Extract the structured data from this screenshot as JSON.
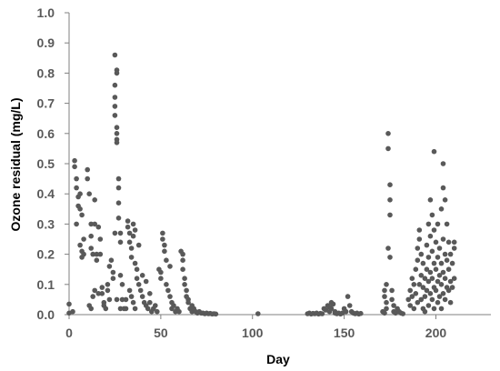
{
  "chart_data": {
    "type": "scatter",
    "xlabel": "Day",
    "ylabel": "Ozone residual (mg/L)",
    "xlim": [
      0,
      230
    ],
    "ylim": [
      0,
      1.0
    ],
    "xticks": [
      "0",
      "50",
      "100",
      "150",
      "200"
    ],
    "yticks": [
      "0.0",
      "0.1",
      "0.2",
      "0.3",
      "0.4",
      "0.5",
      "0.6",
      "0.7",
      "0.8",
      "0.9",
      "1.0"
    ],
    "grid": false,
    "legend": "none",
    "colors": {
      "point": "#595959",
      "axis": "#808080"
    },
    "series": [
      {
        "points": [
          [
            0,
            0.035
          ],
          [
            0,
            0.005
          ],
          [
            2,
            0.01
          ],
          [
            3,
            0.51
          ],
          [
            3,
            0.49
          ],
          [
            4,
            0.45
          ],
          [
            4,
            0.42
          ],
          [
            5,
            0.39
          ],
          [
            5,
            0.36
          ],
          [
            4,
            0.3
          ],
          [
            6,
            0.4
          ],
          [
            6,
            0.35
          ],
          [
            7,
            0.33
          ],
          [
            6,
            0.23
          ],
          [
            7,
            0.21
          ],
          [
            7,
            0.19
          ],
          [
            8,
            0.25
          ],
          [
            8,
            0.2
          ],
          [
            10,
            0.48
          ],
          [
            10,
            0.45
          ],
          [
            11,
            0.4
          ],
          [
            12,
            0.3
          ],
          [
            12,
            0.26
          ],
          [
            12,
            0.22
          ],
          [
            13,
            0.2
          ],
          [
            14,
            0.38
          ],
          [
            14,
            0.3
          ],
          [
            15,
            0.2
          ],
          [
            15,
            0.18
          ],
          [
            16,
            0.29
          ],
          [
            17,
            0.25
          ],
          [
            17,
            0.2
          ],
          [
            16,
            0.07
          ],
          [
            14,
            0.08
          ],
          [
            13,
            0.06
          ],
          [
            12,
            0.02
          ],
          [
            11,
            0.03
          ],
          [
            18,
            0.09
          ],
          [
            18,
            0.07
          ],
          [
            19,
            0.04
          ],
          [
            19,
            0.03
          ],
          [
            20,
            0.02
          ],
          [
            21,
            0.08
          ],
          [
            21,
            0.1
          ],
          [
            22,
            0.05
          ],
          [
            22,
            0.16
          ],
          [
            23,
            0.18
          ],
          [
            24,
            0.12
          ],
          [
            24,
            0.14
          ],
          [
            25,
            0.27
          ],
          [
            25,
            0.86
          ],
          [
            26,
            0.81
          ],
          [
            26,
            0.8
          ],
          [
            25,
            0.76
          ],
          [
            25,
            0.72
          ],
          [
            25,
            0.69
          ],
          [
            25,
            0.66
          ],
          [
            26,
            0.62
          ],
          [
            26,
            0.6
          ],
          [
            26,
            0.58
          ],
          [
            26,
            0.57
          ],
          [
            27,
            0.45
          ],
          [
            27,
            0.42
          ],
          [
            27,
            0.37
          ],
          [
            27,
            0.32
          ],
          [
            28,
            0.27
          ],
          [
            28,
            0.24
          ],
          [
            28,
            0.13
          ],
          [
            29,
            0.1
          ],
          [
            29,
            0.05
          ],
          [
            30,
            0.02
          ],
          [
            28,
            0.02
          ],
          [
            26,
            0.05
          ],
          [
            32,
            0.31
          ],
          [
            32,
            0.29
          ],
          [
            33,
            0.27
          ],
          [
            33,
            0.24
          ],
          [
            34,
            0.22
          ],
          [
            34,
            0.19
          ],
          [
            35,
            0.26
          ],
          [
            35,
            0.3
          ],
          [
            36,
            0.28
          ],
          [
            36,
            0.17
          ],
          [
            37,
            0.15
          ],
          [
            37,
            0.12
          ],
          [
            38,
            0.23
          ],
          [
            38,
            0.1
          ],
          [
            39,
            0.08
          ],
          [
            40,
            0.06
          ],
          [
            40,
            0.13
          ],
          [
            41,
            0.04
          ],
          [
            42,
            0.11
          ],
          [
            42,
            0.03
          ],
          [
            43,
            0.02
          ],
          [
            44,
            0.07
          ],
          [
            45,
            0.01
          ],
          [
            44,
            0.04
          ],
          [
            46,
            0.02
          ],
          [
            47,
            0.03
          ],
          [
            48,
            0.01
          ],
          [
            33,
            0.08
          ],
          [
            34,
            0.06
          ],
          [
            35,
            0.04
          ],
          [
            36,
            0.02
          ],
          [
            31,
            0.05
          ],
          [
            31,
            0.02
          ],
          [
            49,
            0.15
          ],
          [
            50,
            0.14
          ],
          [
            50,
            0.12
          ],
          [
            51,
            0.27
          ],
          [
            51,
            0.25
          ],
          [
            52,
            0.23
          ],
          [
            52,
            0.21
          ],
          [
            53,
            0.18
          ],
          [
            53,
            0.1
          ],
          [
            54,
            0.08
          ],
          [
            55,
            0.06
          ],
          [
            55,
            0.16
          ],
          [
            56,
            0.04
          ],
          [
            56,
            0.02
          ],
          [
            57,
            0.03
          ],
          [
            58,
            0.01
          ],
          [
            59,
            0.02
          ],
          [
            60,
            0.01
          ],
          [
            61,
            0.21
          ],
          [
            62,
            0.2
          ],
          [
            62,
            0.18
          ],
          [
            62,
            0.15
          ],
          [
            63,
            0.12
          ],
          [
            63,
            0.1
          ],
          [
            64,
            0.08
          ],
          [
            64,
            0.06
          ],
          [
            65,
            0.05
          ],
          [
            65,
            0.04
          ],
          [
            66,
            0.02
          ],
          [
            67,
            0.03
          ],
          [
            67,
            0.01
          ],
          [
            68,
            0.02
          ],
          [
            69,
            0.01
          ],
          [
            70,
            0.005
          ],
          [
            71,
            0.01
          ],
          [
            72,
            0.005
          ],
          [
            73,
            0.005
          ],
          [
            74,
            0.003
          ],
          [
            75,
            0.005
          ],
          [
            76,
            0.003
          ],
          [
            77,
            0.004
          ],
          [
            78,
            0.002
          ],
          [
            79,
            0.003
          ],
          [
            80,
            0.002
          ],
          [
            103,
            0.003
          ],
          [
            130,
            0.003
          ],
          [
            131,
            0.005
          ],
          [
            132,
            0.002
          ],
          [
            133,
            0.004
          ],
          [
            134,
            0.003
          ],
          [
            135,
            0.005
          ],
          [
            136,
            0.002
          ],
          [
            137,
            0.004
          ],
          [
            138,
            0.003
          ],
          [
            139,
            0.02
          ],
          [
            140,
            0.015
          ],
          [
            141,
            0.03
          ],
          [
            142,
            0.025
          ],
          [
            142,
            0.01
          ],
          [
            143,
            0.04
          ],
          [
            143,
            0.02
          ],
          [
            144,
            0.035
          ],
          [
            145,
            0.01
          ],
          [
            145,
            0.005
          ],
          [
            146,
            0.003
          ],
          [
            147,
            0.005
          ],
          [
            148,
            0.002
          ],
          [
            149,
            0.005
          ],
          [
            150,
            0.02
          ],
          [
            151,
            0.01
          ],
          [
            152,
            0.06
          ],
          [
            153,
            0.03
          ],
          [
            154,
            0.01
          ],
          [
            155,
            0.005
          ],
          [
            156,
            0.003
          ],
          [
            157,
            0.005
          ],
          [
            158,
            0.002
          ],
          [
            159,
            0.004
          ],
          [
            172,
            0.08
          ],
          [
            172,
            0.06
          ],
          [
            173,
            0.1
          ],
          [
            173,
            0.04
          ],
          [
            173,
            0.02
          ],
          [
            174,
            0.6
          ],
          [
            174,
            0.55
          ],
          [
            175,
            0.43
          ],
          [
            175,
            0.38
          ],
          [
            175,
            0.33
          ],
          [
            174,
            0.22
          ],
          [
            175,
            0.19
          ],
          [
            176,
            0.08
          ],
          [
            176,
            0.05
          ],
          [
            177,
            0.03
          ],
          [
            177,
            0.01
          ],
          [
            178,
            0.005
          ],
          [
            179,
            0.02
          ],
          [
            180,
            0.01
          ],
          [
            181,
            0.005
          ],
          [
            182,
            0.003
          ],
          [
            172,
            0.005
          ],
          [
            171,
            0.01
          ],
          [
            185,
            0.05
          ],
          [
            186,
            0.08
          ],
          [
            186,
            0.03
          ],
          [
            187,
            0.12
          ],
          [
            187,
            0.06
          ],
          [
            188,
            0.1
          ],
          [
            188,
            0.02
          ],
          [
            189,
            0.15
          ],
          [
            189,
            0.07
          ],
          [
            190,
            0.22
          ],
          [
            190,
            0.18
          ],
          [
            190,
            0.04
          ],
          [
            191,
            0.28
          ],
          [
            191,
            0.25
          ],
          [
            191,
            0.1
          ],
          [
            192,
            0.2
          ],
          [
            192,
            0.13
          ],
          [
            192,
            0.05
          ],
          [
            193,
            0.17
          ],
          [
            193,
            0.09
          ],
          [
            193,
            0.02
          ],
          [
            194,
            0.12
          ],
          [
            194,
            0.06
          ],
          [
            194,
            0.01
          ],
          [
            195,
            0.23
          ],
          [
            195,
            0.15
          ],
          [
            195,
            0.08
          ],
          [
            196,
            0.3
          ],
          [
            196,
            0.19
          ],
          [
            196,
            0.11
          ],
          [
            196,
            0.03
          ],
          [
            197,
            0.38
          ],
          [
            197,
            0.26
          ],
          [
            197,
            0.14
          ],
          [
            197,
            0.07
          ],
          [
            198,
            0.33
          ],
          [
            198,
            0.21
          ],
          [
            198,
            0.12
          ],
          [
            198,
            0.05
          ],
          [
            199,
            0.54
          ],
          [
            199,
            0.28
          ],
          [
            199,
            0.17
          ],
          [
            199,
            0.09
          ],
          [
            199,
            0.02
          ],
          [
            200,
            0.24
          ],
          [
            200,
            0.15
          ],
          [
            200,
            0.08
          ],
          [
            201,
            0.3
          ],
          [
            201,
            0.19
          ],
          [
            201,
            0.11
          ],
          [
            201,
            0.04
          ],
          [
            202,
            0.22
          ],
          [
            202,
            0.13
          ],
          [
            202,
            0.06
          ],
          [
            203,
            0.35
          ],
          [
            203,
            0.17
          ],
          [
            203,
            0.1
          ],
          [
            203,
            0.02
          ],
          [
            204,
            0.5
          ],
          [
            204,
            0.42
          ],
          [
            204,
            0.25
          ],
          [
            204,
            0.14
          ],
          [
            204,
            0.07
          ],
          [
            205,
            0.38
          ],
          [
            205,
            0.2
          ],
          [
            205,
            0.12
          ],
          [
            205,
            0.05
          ],
          [
            206,
            0.3
          ],
          [
            206,
            0.18
          ],
          [
            206,
            0.09
          ],
          [
            207,
            0.24
          ],
          [
            207,
            0.15
          ],
          [
            207,
            0.08
          ],
          [
            208,
            0.2
          ],
          [
            208,
            0.11
          ],
          [
            208,
            0.04
          ],
          [
            209,
            0.17
          ],
          [
            209,
            0.09
          ],
          [
            210,
            0.24
          ],
          [
            210,
            0.22
          ],
          [
            210,
            0.12
          ]
        ]
      }
    ]
  }
}
